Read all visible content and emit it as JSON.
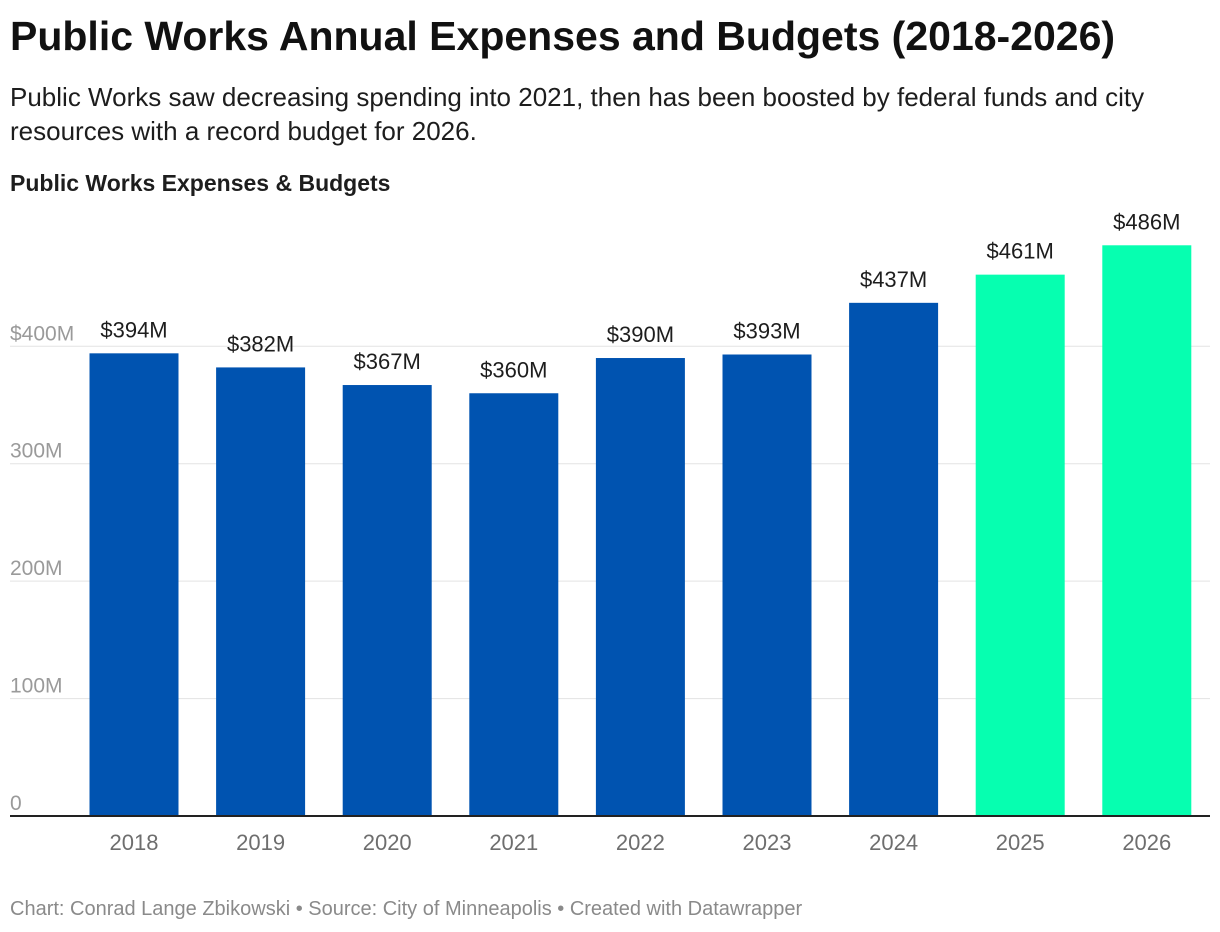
{
  "header": {
    "title": "Public Works Annual Expenses and Budgets (2018-2026)",
    "subtitle": "Public Works saw decreasing spending into 2021, then has been boosted by federal funds and city resources with a record budget for 2026."
  },
  "footer": {
    "credit": "Chart: Conrad Lange Zbikowski • Source: City of Minneapolis • Created with Datawrapper"
  },
  "colors": {
    "expense": "#0053b0",
    "budget": "#06ffb0",
    "gridline": "#e3e3e3",
    "axis_label": "#9a9a9a",
    "baseline": "#222222"
  },
  "chart_data": {
    "type": "bar",
    "title": "Public Works Expenses & Budgets",
    "xlabel": "",
    "ylabel": "",
    "ylim": [
      0,
      486
    ],
    "grid": true,
    "categories": [
      "2018",
      "2019",
      "2020",
      "2021",
      "2022",
      "2023",
      "2024",
      "2025",
      "2026"
    ],
    "values": [
      394,
      382,
      367,
      360,
      390,
      393,
      437,
      461,
      486
    ],
    "value_labels": [
      "$394M",
      "$382M",
      "$367M",
      "$360M",
      "$390M",
      "$393M",
      "$437M",
      "$461M",
      "$486M"
    ],
    "bar_kinds": [
      "expense",
      "expense",
      "expense",
      "expense",
      "expense",
      "expense",
      "expense",
      "budget",
      "budget"
    ],
    "y_ticks": [
      {
        "value": 0,
        "label": "0"
      },
      {
        "value": 100,
        "label": "100M"
      },
      {
        "value": 200,
        "label": "200M"
      },
      {
        "value": 300,
        "label": "300M"
      },
      {
        "value": 400,
        "label": "$400M"
      }
    ]
  }
}
